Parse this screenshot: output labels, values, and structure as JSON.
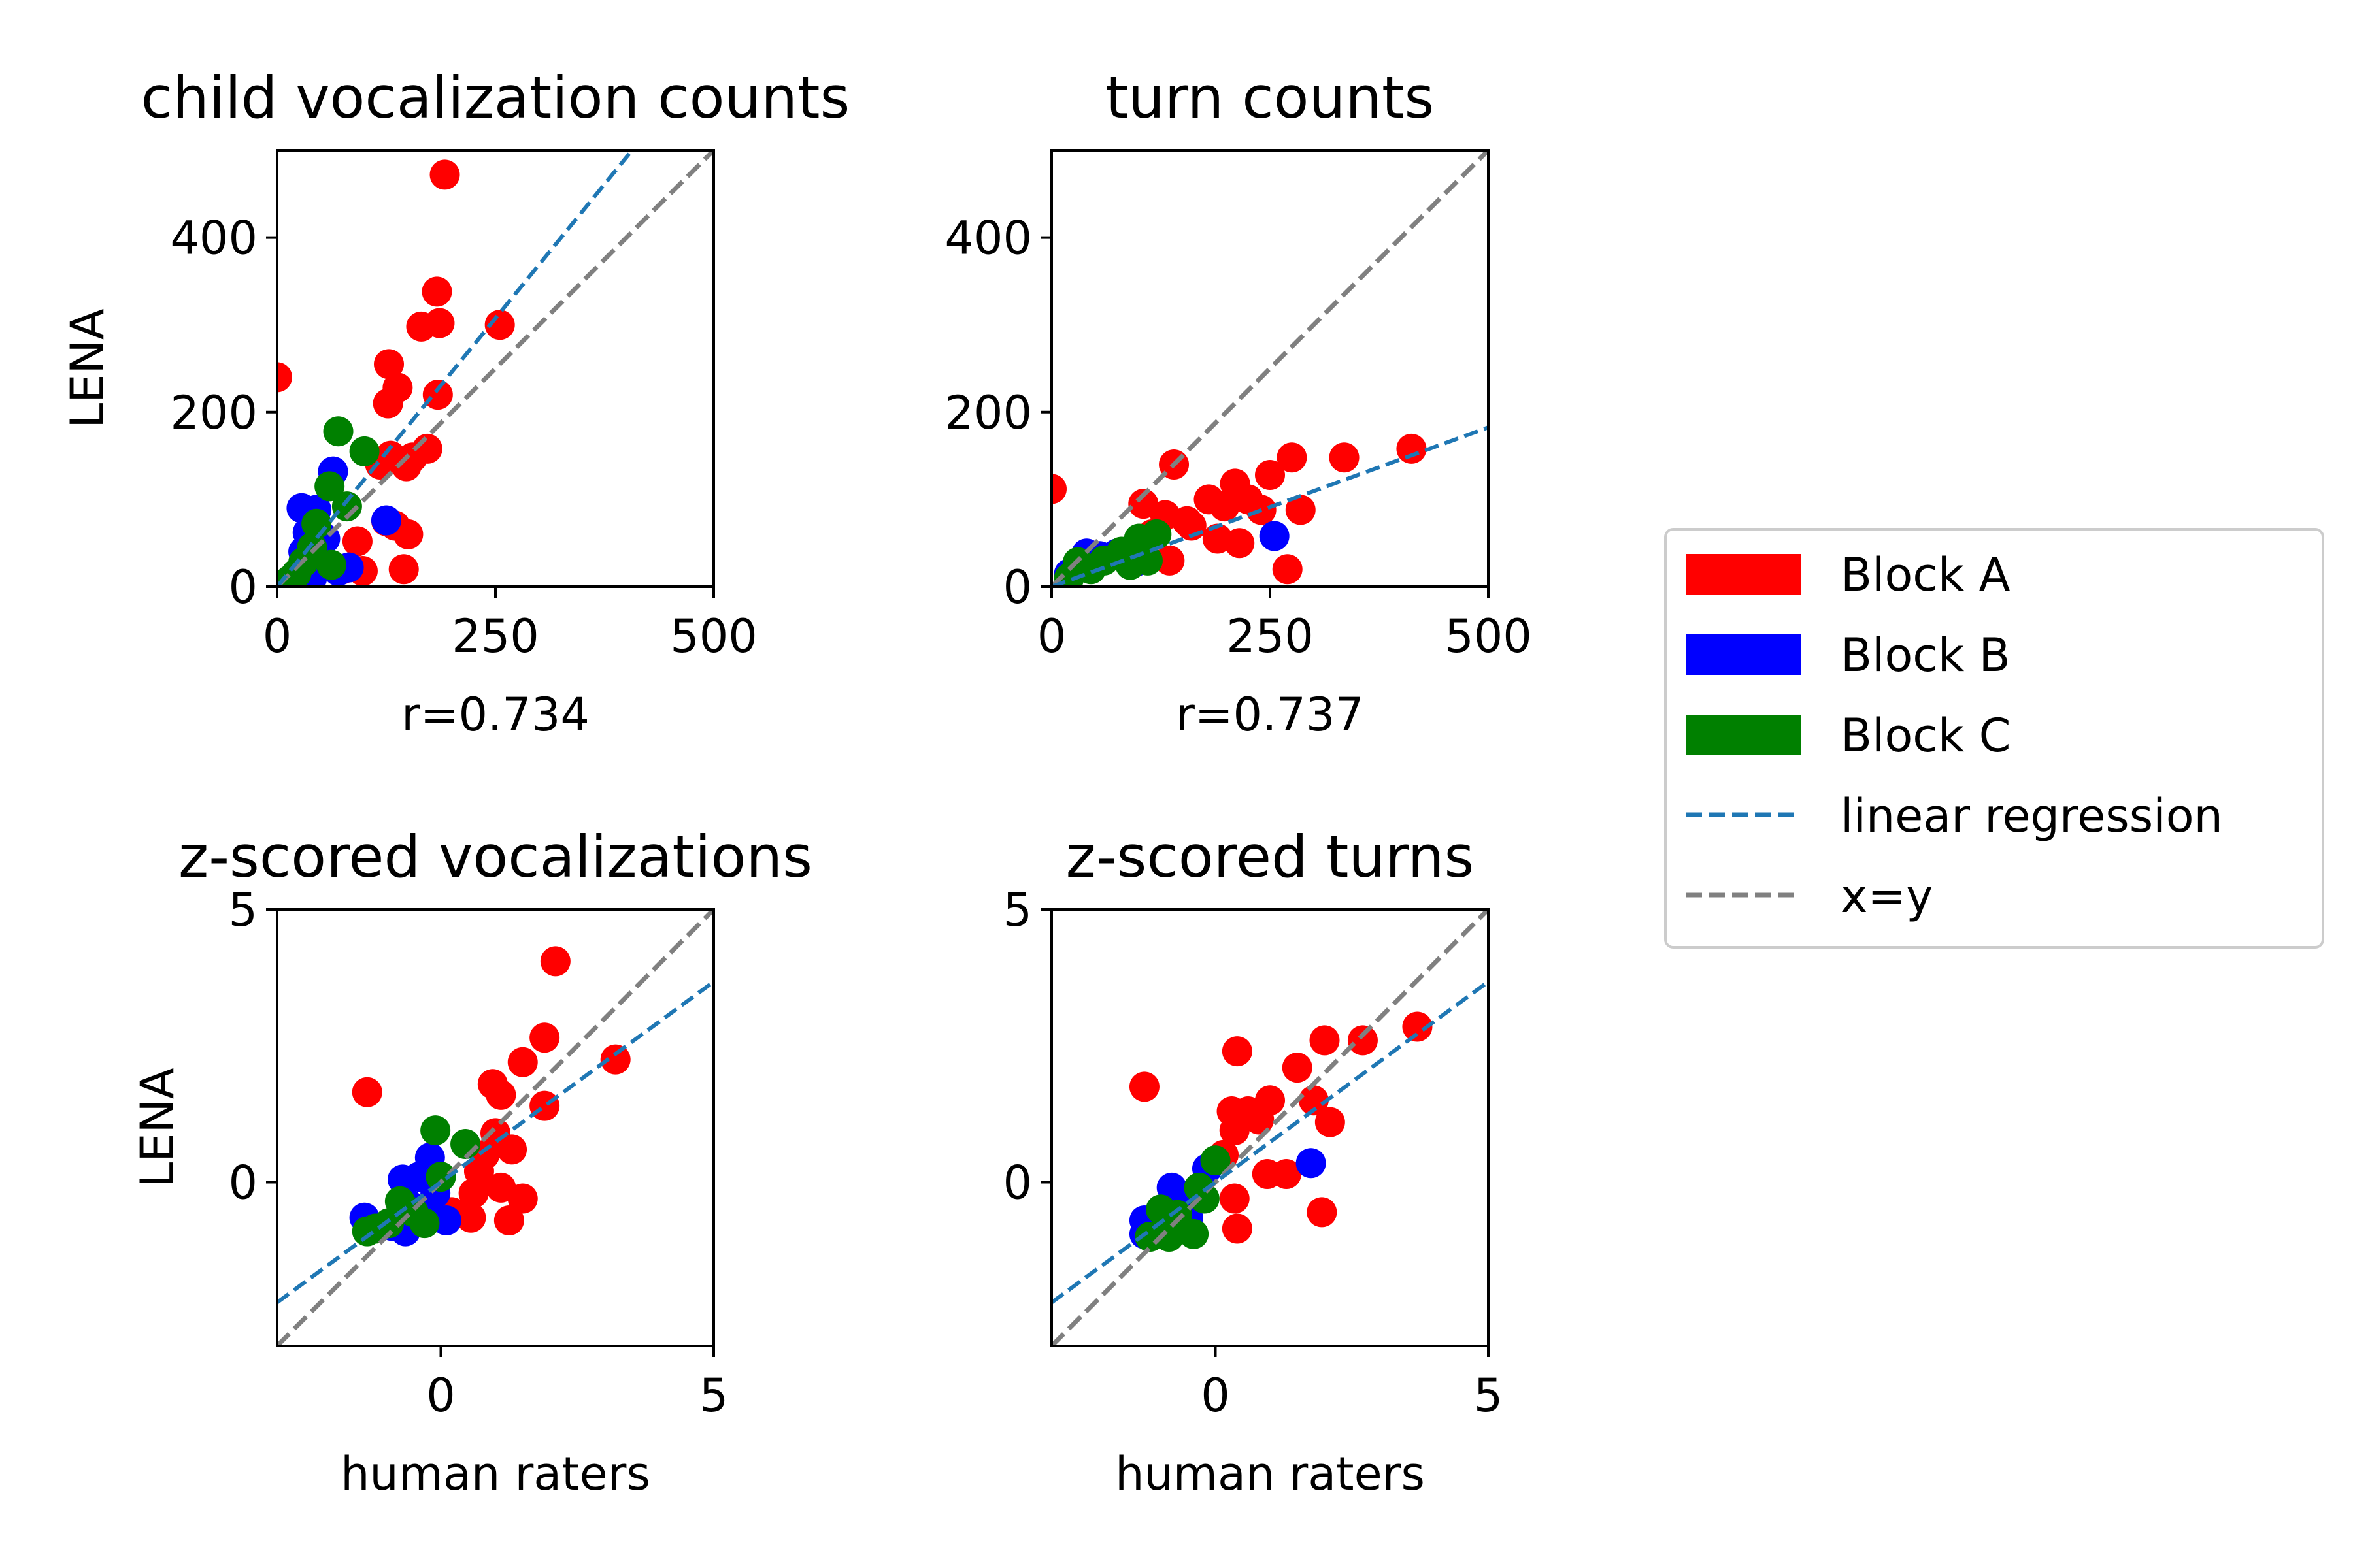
{
  "chart_data": [
    {
      "type": "scatter",
      "title": "child vocalization counts",
      "xlabel": "r=0.734",
      "ylabel": "LENA",
      "xlim": [
        0,
        500
      ],
      "ylim": [
        0,
        500
      ],
      "xticks": [
        0,
        250,
        500
      ],
      "yticks": [
        0,
        200,
        400
      ],
      "xtick_labels": [
        "0",
        "250",
        "500"
      ],
      "ytick_labels": [
        "0",
        "200",
        "400"
      ],
      "series": [
        {
          "name": "Block A",
          "color": "#ff0000",
          "points": [
            [
              0,
              240
            ],
            [
              192,
              472
            ],
            [
              183,
              338
            ],
            [
              186,
              302
            ],
            [
              165,
              298
            ],
            [
              255,
              300
            ],
            [
              128,
              255
            ],
            [
              138,
              228
            ],
            [
              127,
              210
            ],
            [
              184,
              220
            ],
            [
              172,
              158
            ],
            [
              155,
              148
            ],
            [
              118,
              140
            ],
            [
              130,
              150
            ],
            [
              148,
              138
            ],
            [
              125,
              75
            ],
            [
              135,
              70
            ],
            [
              150,
              60
            ],
            [
              92,
              52
            ],
            [
              145,
              20
            ],
            [
              98,
              18
            ],
            [
              75,
              20
            ]
          ]
        },
        {
          "name": "Block B",
          "color": "#0000ff",
          "points": [
            [
              64,
              132
            ],
            [
              28,
              90
            ],
            [
              45,
              88
            ],
            [
              35,
              62
            ],
            [
              55,
              55
            ],
            [
              30,
              40
            ],
            [
              48,
              25
            ],
            [
              70,
              18
            ],
            [
              82,
              22
            ],
            [
              125,
              76
            ],
            [
              40,
              10
            ]
          ]
        },
        {
          "name": "Block C",
          "color": "#008000",
          "points": [
            [
              70,
              178
            ],
            [
              100,
              155
            ],
            [
              60,
              115
            ],
            [
              80,
              92
            ],
            [
              45,
              72
            ],
            [
              40,
              45
            ],
            [
              30,
              28
            ],
            [
              62,
              25
            ],
            [
              22,
              15
            ],
            [
              15,
              8
            ]
          ]
        }
      ],
      "regression": {
        "name": "linear regression",
        "color": "#1f77b4",
        "slope": 1.23,
        "intercept": 0
      },
      "identity": {
        "name": "x=y",
        "color": "#808080"
      }
    },
    {
      "type": "scatter",
      "title": "turn counts",
      "xlabel": "r=0.737",
      "ylabel": "",
      "xlim": [
        0,
        500
      ],
      "ylim": [
        0,
        500
      ],
      "xticks": [
        0,
        250,
        500
      ],
      "yticks": [
        0,
        200,
        400
      ],
      "xtick_labels": [
        "0",
        "250",
        "500"
      ],
      "ytick_labels": [
        "0",
        "200",
        "400"
      ],
      "series": [
        {
          "name": "Block A",
          "color": "#ff0000",
          "points": [
            [
              0,
              112
            ],
            [
              412,
              158
            ],
            [
              335,
              148
            ],
            [
              275,
              148
            ],
            [
              140,
              140
            ],
            [
              250,
              128
            ],
            [
              210,
              118
            ],
            [
              180,
              100
            ],
            [
              198,
              92
            ],
            [
              105,
              95
            ],
            [
              130,
              82
            ],
            [
              155,
              75
            ],
            [
              225,
              100
            ],
            [
              240,
              88
            ],
            [
              285,
              88
            ],
            [
              190,
              55
            ],
            [
              215,
              50
            ],
            [
              115,
              60
            ],
            [
              135,
              30
            ],
            [
              270,
              20
            ],
            [
              160,
              70
            ]
          ]
        },
        {
          "name": "Block B",
          "color": "#0000ff",
          "points": [
            [
              255,
              58
            ],
            [
              40,
              38
            ],
            [
              55,
              35
            ],
            [
              75,
              38
            ],
            [
              30,
              25
            ],
            [
              20,
              15
            ],
            [
              95,
              28
            ]
          ]
        },
        {
          "name": "Block C",
          "color": "#008000",
          "points": [
            [
              100,
              55
            ],
            [
              120,
              60
            ],
            [
              80,
              40
            ],
            [
              60,
              30
            ],
            [
              30,
              28
            ],
            [
              45,
              20
            ],
            [
              20,
              10
            ],
            [
              110,
              30
            ],
            [
              90,
              25
            ]
          ]
        }
      ],
      "regression": {
        "name": "linear regression",
        "color": "#1f77b4",
        "slope": 0.365,
        "intercept": 0
      },
      "identity": {
        "name": "x=y",
        "color": "#808080"
      }
    },
    {
      "type": "scatter",
      "title": "z-scored vocalizations",
      "xlabel": "human raters",
      "ylabel": "LENA",
      "xlim": [
        -3,
        5
      ],
      "ylim": [
        -3,
        5
      ],
      "xticks": [
        0,
        5
      ],
      "yticks": [
        0,
        5
      ],
      "xtick_labels": [
        "0",
        "5"
      ],
      "ytick_labels": [
        "0",
        "5"
      ],
      "series": [
        {
          "name": "Block A",
          "color": "#ff0000",
          "points": [
            [
              2.1,
              4.05
            ],
            [
              1.9,
              2.65
            ],
            [
              3.2,
              2.25
            ],
            [
              1.5,
              2.2
            ],
            [
              0.95,
              1.8
            ],
            [
              1.1,
              1.6
            ],
            [
              1.9,
              1.4
            ],
            [
              -1.35,
              1.65
            ],
            [
              1.0,
              0.9
            ],
            [
              1.3,
              0.6
            ],
            [
              0.8,
              0.5
            ],
            [
              0.7,
              0.2
            ],
            [
              1.1,
              -0.1
            ],
            [
              1.5,
              -0.3
            ],
            [
              1.25,
              -0.7
            ],
            [
              0.55,
              -0.65
            ],
            [
              0.2,
              -0.55
            ],
            [
              0.6,
              -0.2
            ]
          ]
        },
        {
          "name": "Block B",
          "color": "#0000ff",
          "points": [
            [
              -0.2,
              0.45
            ],
            [
              -0.7,
              0.05
            ],
            [
              -0.4,
              0.1
            ],
            [
              -0.1,
              -0.2
            ],
            [
              -0.6,
              -0.4
            ],
            [
              -1.4,
              -0.65
            ],
            [
              -0.9,
              -0.8
            ],
            [
              0.1,
              -0.7
            ],
            [
              -0.65,
              -0.9
            ],
            [
              -0.3,
              -0.55
            ]
          ]
        },
        {
          "name": "Block C",
          "color": "#008000",
          "points": [
            [
              -0.1,
              0.95
            ],
            [
              0.45,
              0.7
            ],
            [
              0.0,
              0.1
            ],
            [
              -0.75,
              -0.35
            ],
            [
              -0.5,
              -0.55
            ],
            [
              -1.2,
              -0.85
            ],
            [
              -0.95,
              -0.75
            ],
            [
              -1.35,
              -0.9
            ],
            [
              -0.3,
              -0.75
            ]
          ]
        }
      ],
      "regression": {
        "name": "linear regression",
        "color": "#1f77b4",
        "slope": 0.735,
        "intercept": 0
      },
      "identity": {
        "name": "x=y",
        "color": "#808080"
      }
    },
    {
      "type": "scatter",
      "title": "z-scored turns",
      "xlabel": "human raters",
      "ylabel": "",
      "xlim": [
        -3,
        5
      ],
      "ylim": [
        -3,
        5
      ],
      "xticks": [
        0,
        5
      ],
      "yticks": [
        0,
        5
      ],
      "xtick_labels": [
        "0",
        "5"
      ],
      "ytick_labels": [
        "0",
        "5"
      ],
      "series": [
        {
          "name": "Block A",
          "color": "#ff0000",
          "points": [
            [
              3.7,
              2.85
            ],
            [
              2.7,
              2.6
            ],
            [
              2.0,
              2.6
            ],
            [
              0.4,
              2.4
            ],
            [
              1.5,
              2.1
            ],
            [
              -1.3,
              1.75
            ],
            [
              1.0,
              1.5
            ],
            [
              1.8,
              1.5
            ],
            [
              0.3,
              1.3
            ],
            [
              0.6,
              1.3
            ],
            [
              2.1,
              1.1
            ],
            [
              0.8,
              1.15
            ],
            [
              0.35,
              0.95
            ],
            [
              0.95,
              0.15
            ],
            [
              1.3,
              0.15
            ],
            [
              1.95,
              -0.55
            ],
            [
              0.4,
              -0.85
            ],
            [
              0.35,
              -0.3
            ],
            [
              0.15,
              0.5
            ]
          ]
        },
        {
          "name": "Block B",
          "color": "#0000ff",
          "points": [
            [
              1.75,
              0.35
            ],
            [
              -0.15,
              0.25
            ],
            [
              -0.8,
              -0.1
            ],
            [
              -0.6,
              -0.25
            ],
            [
              -1.3,
              -0.7
            ],
            [
              -0.9,
              -0.85
            ],
            [
              -1.3,
              -0.95
            ],
            [
              -0.5,
              -0.65
            ]
          ]
        },
        {
          "name": "Block C",
          "color": "#008000",
          "points": [
            [
              0.0,
              0.4
            ],
            [
              -0.3,
              -0.1
            ],
            [
              -1.0,
              -0.5
            ],
            [
              -0.7,
              -0.6
            ],
            [
              -1.2,
              -1.0
            ],
            [
              -0.85,
              -1.0
            ],
            [
              -0.4,
              -0.95
            ],
            [
              -0.2,
              -0.3
            ]
          ]
        }
      ],
      "regression": {
        "name": "linear regression",
        "color": "#1f77b4",
        "slope": 0.735,
        "intercept": 0
      },
      "identity": {
        "name": "x=y",
        "color": "#808080"
      }
    }
  ],
  "legend": {
    "placement": "right",
    "items": [
      {
        "label": "Block A",
        "kind": "patch",
        "color": "#ff0000"
      },
      {
        "label": "Block B",
        "kind": "patch",
        "color": "#0000ff"
      },
      {
        "label": "Block C",
        "kind": "patch",
        "color": "#008000"
      },
      {
        "label": "linear regression",
        "kind": "dashed",
        "color": "#1f77b4"
      },
      {
        "label": "x=y",
        "kind": "dashed",
        "color": "#808080"
      }
    ]
  }
}
